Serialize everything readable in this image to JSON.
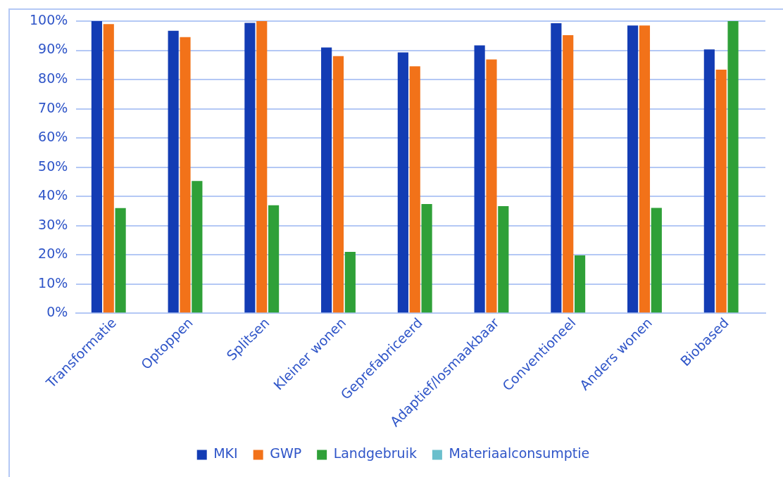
{
  "chart_data": {
    "type": "bar",
    "categories": [
      "Transformatie",
      "Optoppen",
      "Splitsen",
      "Kleiner wonen",
      "Geprefabriceerd",
      "Adaptief/losmaakbaar",
      "Conventioneel",
      "Anders wonen",
      "Biobased"
    ],
    "series": [
      {
        "name": "MKI",
        "color": "#133cb4",
        "values": [
          100,
          96.7,
          99.4,
          91,
          89.3,
          91.7,
          99.3,
          98.5,
          90.3
        ]
      },
      {
        "name": "GWP",
        "color": "#f27219",
        "values": [
          99,
          94.5,
          100,
          88,
          84.5,
          86.9,
          95.2,
          98.5,
          83.4
        ]
      },
      {
        "name": "Landgebruik",
        "color": "#2fa038",
        "values": [
          36,
          45.3,
          37,
          21,
          37.4,
          36.7,
          19.8,
          36.1,
          100
        ]
      },
      {
        "name": "Materiaalconsumptie",
        "color": "#6bbfcc",
        "values": [
          null,
          null,
          null,
          null,
          null,
          null,
          null,
          null,
          null
        ]
      }
    ],
    "ylim": [
      0,
      100
    ],
    "yticks": [
      {
        "value": 0,
        "label": "0%"
      },
      {
        "value": 10,
        "label": "10%"
      },
      {
        "value": 20,
        "label": "20%"
      },
      {
        "value": 30,
        "label": "30%"
      },
      {
        "value": 40,
        "label": "40%"
      },
      {
        "value": 50,
        "label": "50%"
      },
      {
        "value": 60,
        "label": "60%"
      },
      {
        "value": 70,
        "label": "70%"
      },
      {
        "value": 80,
        "label": "80%"
      },
      {
        "value": 90,
        "label": "90%"
      },
      {
        "value": 100,
        "label": "100%"
      }
    ],
    "grid": "y",
    "legend": "bottom"
  }
}
